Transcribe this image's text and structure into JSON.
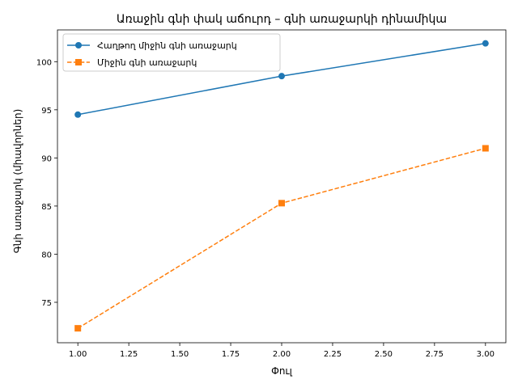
{
  "chart_data": {
    "type": "line",
    "title": "Առաջին գնի փակ աճուրդ – գնի առաջարկի դինամիկա",
    "xlabel": "Փուլ",
    "ylabel": "Գնի առաջարկ (միավորներ)",
    "x": [
      1,
      2,
      3
    ],
    "xlim": [
      0.9,
      3.1
    ],
    "ylim": [
      70.8,
      103.3
    ],
    "xticks": [
      1.0,
      1.25,
      1.5,
      1.75,
      2.0,
      2.25,
      2.5,
      2.75,
      3.0
    ],
    "xtick_labels": [
      "1.00",
      "1.25",
      "1.50",
      "1.75",
      "2.00",
      "2.25",
      "2.50",
      "2.75",
      "3.00"
    ],
    "yticks": [
      75,
      80,
      85,
      90,
      95,
      100
    ],
    "ytick_labels": [
      "75",
      "80",
      "85",
      "90",
      "95",
      "100"
    ],
    "grid": false,
    "legend_position": "top-left",
    "series": [
      {
        "name": "Հաղթող միջին գնի առաջարկ",
        "values": [
          94.5,
          98.5,
          101.9
        ],
        "color": "#1f77b4",
        "line_style": "solid",
        "marker": "circle"
      },
      {
        "name": "Միջին գնի առաջարկ",
        "values": [
          72.3,
          85.3,
          91.0
        ],
        "color": "#ff7f0e",
        "line_style": "dashed",
        "marker": "square"
      }
    ]
  }
}
